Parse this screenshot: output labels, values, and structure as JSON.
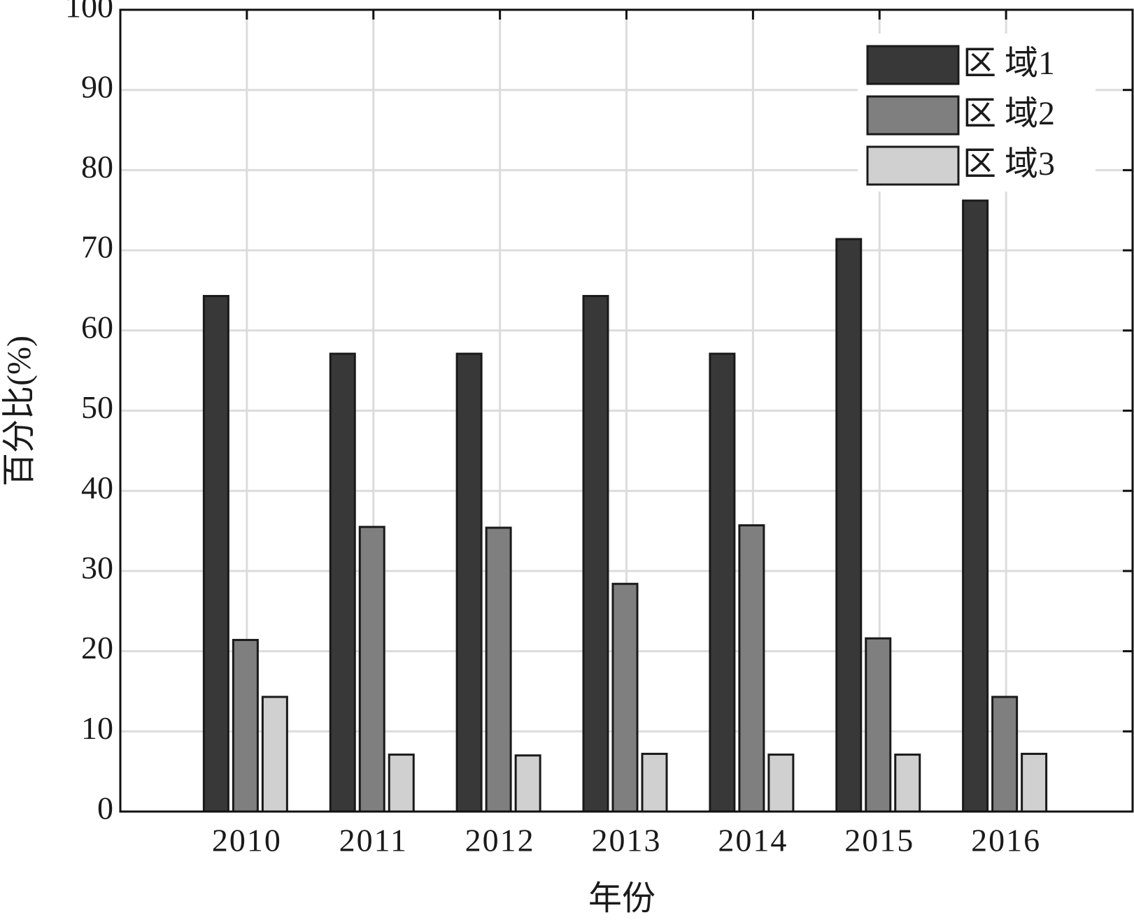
{
  "chart_data": {
    "type": "bar",
    "x_label": "年份",
    "y_label": "百分比(%)",
    "categories": [
      "2010",
      "2011",
      "2012",
      "2013",
      "2014",
      "2015",
      "2016"
    ],
    "series": [
      {
        "name": "区 域1",
        "color": "#383838",
        "values": [
          64.3,
          57.1,
          57.1,
          64.3,
          57.1,
          71.4,
          76.2
        ]
      },
      {
        "name": "区 域2",
        "color": "#7f7f7f",
        "values": [
          21.4,
          35.5,
          35.4,
          28.4,
          35.7,
          21.6,
          14.3
        ]
      },
      {
        "name": "区 域3",
        "color": "#d0d0d0",
        "values": [
          14.3,
          7.1,
          7.0,
          7.2,
          7.1,
          7.1,
          7.2
        ]
      }
    ],
    "ylim": [
      0,
      100
    ],
    "yticks": [
      0,
      10,
      20,
      30,
      40,
      50,
      60,
      70,
      80,
      90,
      100
    ],
    "grid": true,
    "legend": "upper right"
  }
}
